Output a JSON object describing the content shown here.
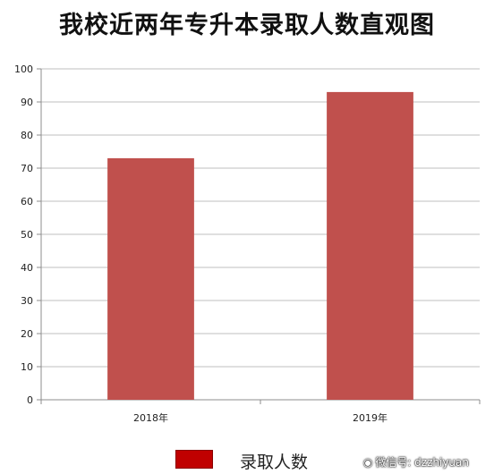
{
  "chart_data": {
    "type": "bar",
    "title": "我校近两年专升本录取人数直观图",
    "categories": [
      "2018年",
      "2019年"
    ],
    "series": [
      {
        "name": "录取人数",
        "values": [
          73,
          93
        ],
        "color": "#c0504d"
      }
    ],
    "ylim": [
      0,
      100
    ],
    "yticks": [
      0,
      10,
      20,
      30,
      40,
      50,
      60,
      70,
      80,
      90,
      100
    ],
    "grid": true,
    "legend_position": "bottom",
    "legend_swatch_color": "#c00000"
  },
  "watermark": {
    "icon": "wechat-icon",
    "text": "微信号: dzzhiyuan"
  }
}
